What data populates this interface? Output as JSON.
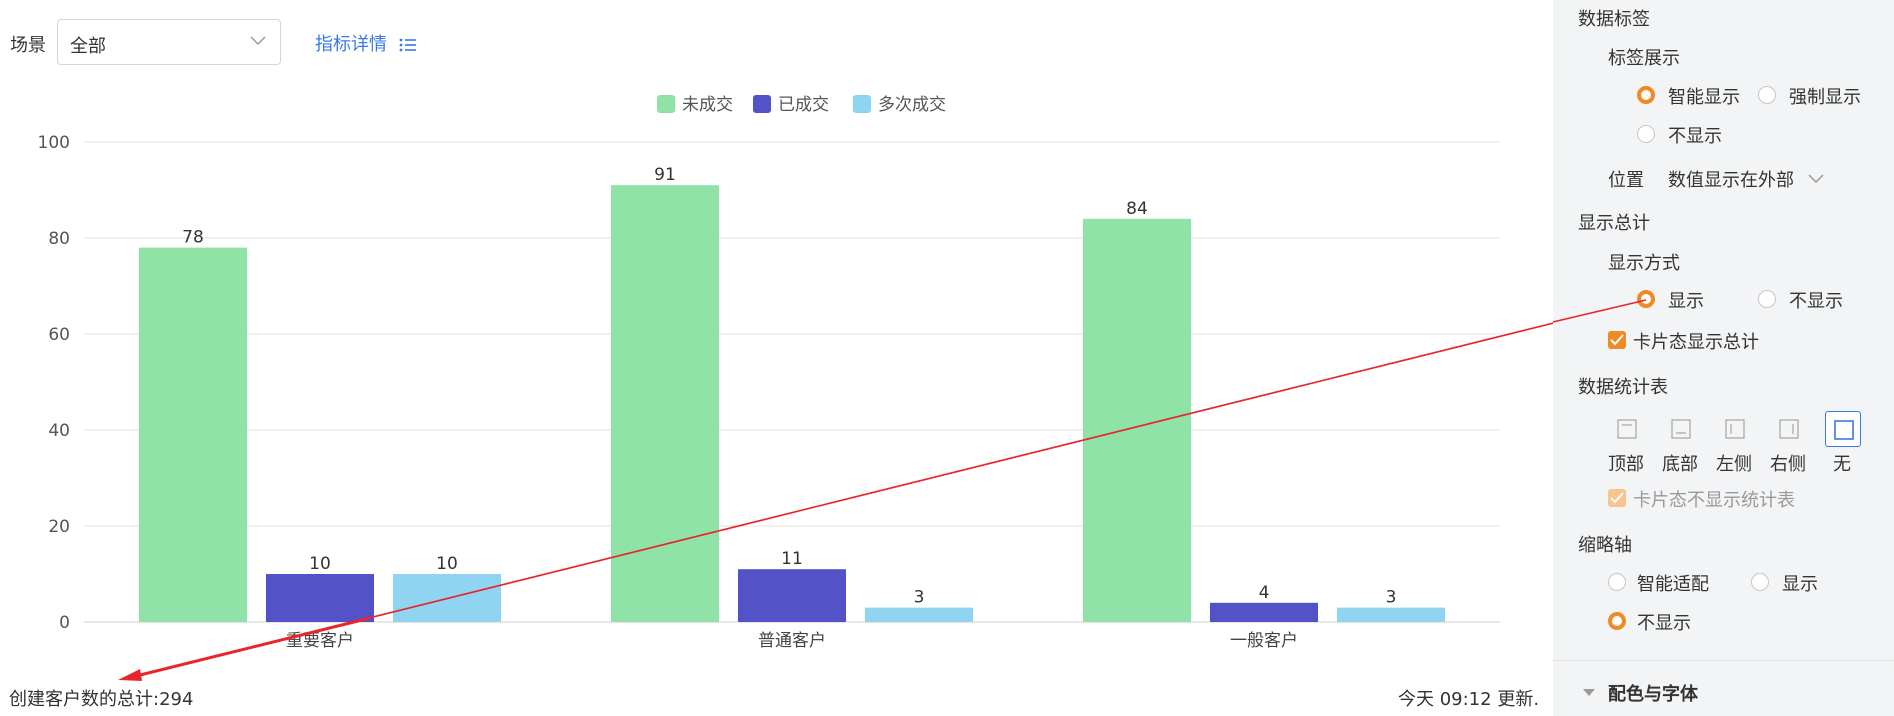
{
  "toolbar": {
    "scene_label": "场景",
    "scene_value": "全部",
    "detail_link": "指标详情"
  },
  "chart_data": {
    "type": "bar",
    "categories": [
      "重要客户",
      "普通客户",
      "一般客户"
    ],
    "series": [
      {
        "name": "未成交",
        "values": [
          78,
          91,
          84
        ],
        "color": "#8fe3a6"
      },
      {
        "name": "已成交",
        "values": [
          10,
          11,
          4
        ],
        "color": "#5352c6"
      },
      {
        "name": "多次成交",
        "values": [
          10,
          3,
          3
        ],
        "color": "#8fd5f2"
      }
    ],
    "ylim": [
      0,
      100
    ],
    "yticks": [
      0,
      20,
      40,
      60,
      80,
      100
    ],
    "grid": true,
    "legend": "top-center",
    "data_labels": true,
    "xlabel": "",
    "ylabel": ""
  },
  "footer": {
    "total": "创建客户数的总计:294",
    "updated": "今天 09:12 更新."
  },
  "panel": {
    "data_label_title": "数据标签",
    "label_display": "标签展示",
    "label_options": [
      "智能显示",
      "强制显示",
      "不显示"
    ],
    "label_selected": "智能显示",
    "position_label": "位置",
    "position_value": "数值显示在外部",
    "show_total_title": "显示总计",
    "display_mode": "显示方式",
    "display_options": [
      "显示",
      "不显示"
    ],
    "display_selected": "显示",
    "card_total": "卡片态显示总计",
    "stats_table_title": "数据统计表",
    "table_positions": [
      "顶部",
      "底部",
      "左侧",
      "右侧",
      "无"
    ],
    "table_selected": "无",
    "card_no_table": "卡片态不显示统计表",
    "thumb_axis_title": "缩略轴",
    "thumb_options": [
      "智能适配",
      "显示",
      "不显示"
    ],
    "thumb_selected": "不显示",
    "section_color_font": "配色与字体"
  },
  "colors": {
    "accent": "#f08a24",
    "link": "#3b78e7",
    "annotation_arrow": "#e8252b"
  }
}
